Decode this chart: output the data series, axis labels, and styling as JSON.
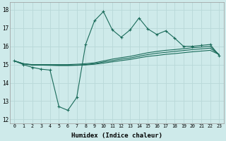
{
  "xlabel": "Humidex (Indice chaleur)",
  "xlim": [
    -0.5,
    23.5
  ],
  "ylim": [
    11.8,
    18.4
  ],
  "yticks": [
    12,
    13,
    14,
    15,
    16,
    17,
    18
  ],
  "xticks": [
    0,
    1,
    2,
    3,
    4,
    5,
    6,
    7,
    8,
    9,
    10,
    11,
    12,
    13,
    14,
    15,
    16,
    17,
    18,
    19,
    20,
    21,
    22,
    23
  ],
  "bg_color": "#ceeaea",
  "grid_color": "#b8d8d8",
  "line_color": "#1a6b5a",
  "line1_y": [
    15.2,
    15.0,
    14.85,
    14.75,
    14.7,
    12.7,
    12.5,
    13.2,
    16.1,
    17.4,
    17.9,
    16.9,
    16.5,
    16.9,
    17.55,
    16.95,
    16.65,
    16.85,
    16.45,
    16.0,
    16.0,
    16.05,
    16.1,
    15.5
  ],
  "line2_y": [
    15.2,
    15.05,
    15.0,
    15.0,
    15.0,
    15.0,
    15.0,
    15.02,
    15.05,
    15.1,
    15.2,
    15.3,
    15.38,
    15.45,
    15.55,
    15.65,
    15.72,
    15.78,
    15.82,
    15.87,
    15.92,
    15.96,
    16.0,
    15.55
  ],
  "line3_y": [
    15.2,
    15.05,
    14.98,
    14.98,
    14.97,
    14.96,
    14.96,
    14.97,
    15.0,
    15.05,
    15.14,
    15.22,
    15.3,
    15.36,
    15.46,
    15.55,
    15.62,
    15.67,
    15.72,
    15.77,
    15.82,
    15.86,
    15.9,
    15.55
  ],
  "line4_y": [
    15.2,
    15.05,
    14.97,
    14.97,
    14.96,
    14.95,
    14.95,
    14.96,
    14.98,
    15.02,
    15.08,
    15.15,
    15.22,
    15.28,
    15.37,
    15.45,
    15.5,
    15.56,
    15.6,
    15.65,
    15.7,
    15.74,
    15.78,
    15.55
  ]
}
